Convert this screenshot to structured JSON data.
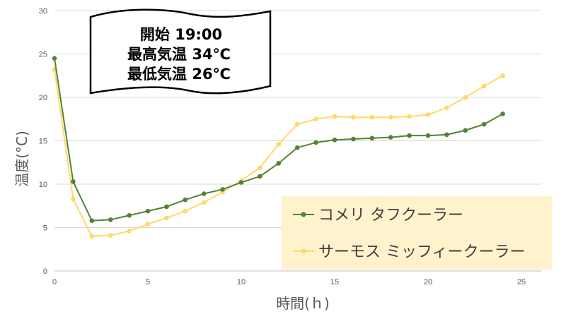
{
  "banner": {
    "lines": [
      "開始 19:00",
      "最高気温 34℃",
      "最低気温 26℃"
    ]
  },
  "chart_data": {
    "type": "line",
    "xlabel": "時間(ｈ)",
    "ylabel": "温度(°C)",
    "xlim": [
      0,
      25
    ],
    "ylim": [
      0,
      30
    ],
    "xticks": [
      "0",
      "5",
      "10",
      "15",
      "20",
      "25"
    ],
    "yticks": [
      "0",
      "5",
      "10",
      "15",
      "20",
      "25",
      "30"
    ],
    "grid": "horizontal",
    "legend": "bottom-right",
    "x": [
      0,
      1,
      2,
      3,
      4,
      5,
      6,
      7,
      8,
      9,
      10,
      11,
      12,
      13,
      14,
      15,
      16,
      17,
      18,
      19,
      20,
      21,
      22,
      23,
      24
    ],
    "series": [
      {
        "name": "コメリ タフクーラー",
        "color": "#548235",
        "values": [
          24.5,
          10.3,
          5.8,
          5.9,
          6.4,
          6.9,
          7.4,
          8.2,
          8.9,
          9.4,
          10.2,
          10.9,
          12.4,
          14.2,
          14.8,
          15.1,
          15.2,
          15.3,
          15.4,
          15.6,
          15.6,
          15.7,
          16.2,
          16.9,
          18.1
        ]
      },
      {
        "name": "サーモス ミッフィークーラー",
        "color": "#FFD966",
        "values": [
          23.2,
          8.3,
          4.0,
          4.1,
          4.6,
          5.4,
          6.1,
          6.9,
          7.9,
          9.1,
          10.4,
          11.9,
          14.6,
          16.9,
          17.5,
          17.8,
          17.7,
          17.7,
          17.7,
          17.8,
          18.0,
          18.8,
          20.0,
          21.3,
          22.5
        ]
      }
    ]
  },
  "colors": {
    "legend_bg": "#FFF2CC",
    "grid": "#D9D9D9",
    "axis": "#BFBFBF"
  }
}
